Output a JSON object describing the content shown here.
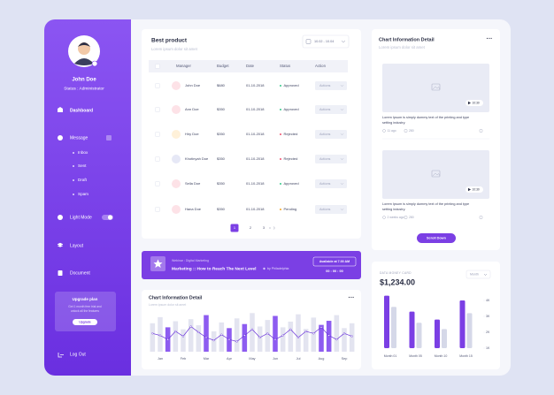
{
  "sidebar": {
    "user_name": "John Doe",
    "user_status": "Status : Administrator",
    "menu": [
      "Dashboard",
      "Message",
      "Light Mode",
      "Layout",
      "Document"
    ],
    "submenu": [
      "Inbox",
      "Sent",
      "Draft",
      "Spam"
    ],
    "upgrade": {
      "title": "Upgrade plan",
      "lines": [
        "Get 1 month free trial and",
        "unlock all the features"
      ],
      "button": "Upgrade"
    },
    "logout": "Log Out"
  },
  "best_product": {
    "title": "Best product",
    "subtitle": "Lorem ipsum dolor sit amet",
    "date_range": "10.02 - 10.04",
    "columns": [
      "Manager",
      "Budget",
      "Date",
      "Status",
      "Action"
    ],
    "rows": [
      [
        "John Doe",
        "$680",
        "01-10-2018",
        "Approved",
        "Actions"
      ],
      [
        "Ann Doe",
        "$350",
        "01-10-2018",
        "Approved",
        "Actions"
      ],
      [
        "Hiry Doe",
        "$350",
        "01-10-2018",
        "Rejected",
        "Actions"
      ],
      [
        "Khotinyah Doe",
        "$350",
        "01-10-2018",
        "Rejected",
        "Actions"
      ],
      [
        "Sella Doe",
        "$350",
        "01-10-2018",
        "Approved",
        "Actions"
      ],
      [
        "Hana Doe",
        "$350",
        "01-10-2018",
        "Pending",
        "Actions"
      ]
    ],
    "status_colors": {
      "Approved": "#34c98a",
      "Rejected": "#f0506e",
      "Pending": "#f5a623"
    },
    "avatar_colors": [
      "#fde2e7",
      "#fde2e7",
      "#fff1d9",
      "#e6e8f6",
      "#fde2e7",
      "#fde2e7"
    ],
    "pages": [
      "1",
      "2",
      "3"
    ]
  },
  "webinar": {
    "kicker": "Webinar : Digital Marketing",
    "title": "Marketing :: How to Reach The Next Level",
    "author": "by Philadelphia",
    "available": "Available at 7.00 AM",
    "timer": "00 : 00 : 00"
  },
  "activity_chart": {
    "type": "bar",
    "title": "Chart Information Detail",
    "subtitle": "Lorem ipsum dolor sit amet",
    "categories": [
      "Jan",
      "Feb",
      "Mar",
      "Apr",
      "May",
      "Jun",
      "Jul",
      "Aug",
      "Sep"
    ],
    "values": [
      70,
      85,
      60,
      75,
      55,
      80,
      65,
      90,
      50,
      72,
      58,
      82,
      68,
      95,
      62,
      78,
      88,
      60,
      74,
      92,
      56,
      84,
      66,
      76,
      90,
      58,
      70
    ],
    "bar_colors": [
      "#e3e4f0",
      "#e3e4f0",
      "#8d5cf0",
      "#e3e4f0",
      "#e3e4f0",
      "#e3e4f0",
      "#e3e4f0",
      "#8d5cf0",
      "#e3e4f0",
      "#e3e4f0",
      "#8d5cf0",
      "#e3e4f0",
      "#8d5cf0",
      "#e3e4f0",
      "#e3e4f0",
      "#e3e4f0",
      "#8d5cf0",
      "#e3e4f0",
      "#e3e4f0",
      "#e3e4f0",
      "#e3e4f0",
      "#e3e4f0",
      "#8d5cf0",
      "#8d5cf0",
      "#e3e4f0",
      "#e3e4f0",
      "#e3e4f0"
    ],
    "line": [
      45,
      40,
      30,
      50,
      38,
      62,
      48,
      35,
      28,
      42,
      30,
      25,
      40,
      55,
      35,
      45,
      30,
      40,
      55,
      35,
      50,
      45,
      60,
      40,
      30,
      45,
      38
    ],
    "line_color": "#6a35d9",
    "ylim": [
      0,
      100
    ]
  },
  "info_panel": {
    "title": "Chart Information Detail",
    "subtitle": "Lorem ipsum dolor sit amet",
    "videos": [
      {
        "duration": "10:30",
        "lines": [
          "Lorem Ipsum is simply dummy text of the printing and type",
          "setting industry."
        ],
        "time": "11 ago",
        "count": "280"
      },
      {
        "duration": "10:30",
        "lines": [
          "Lorem Ipsum is simply dummy text of the printing and type",
          "setting industry."
        ],
        "time": "2 weeks ago",
        "count": "280"
      }
    ],
    "button": "Scroll Down"
  },
  "money_card": {
    "type": "bar",
    "title": "DATA MONEY CARD",
    "amount": "$1,234.00",
    "period": "Month",
    "categories": [
      "Month 01",
      "Month 05",
      "Month 10",
      "Month 15"
    ],
    "series": [
      {
        "color": "#7b3fe4",
        "values": [
          4300,
          3300,
          2800,
          4000
        ]
      },
      {
        "color": "#d5d8e8",
        "values": [
          3600,
          2600,
          2200,
          3200
        ]
      }
    ],
    "ylim": [
      1000,
      4500
    ],
    "yticks": [
      {
        "value": 1000,
        "label": "1K"
      },
      {
        "value": 2000,
        "label": "2K"
      },
      {
        "value": 3000,
        "label": "3K"
      },
      {
        "value": 4000,
        "label": "4K"
      }
    ]
  }
}
